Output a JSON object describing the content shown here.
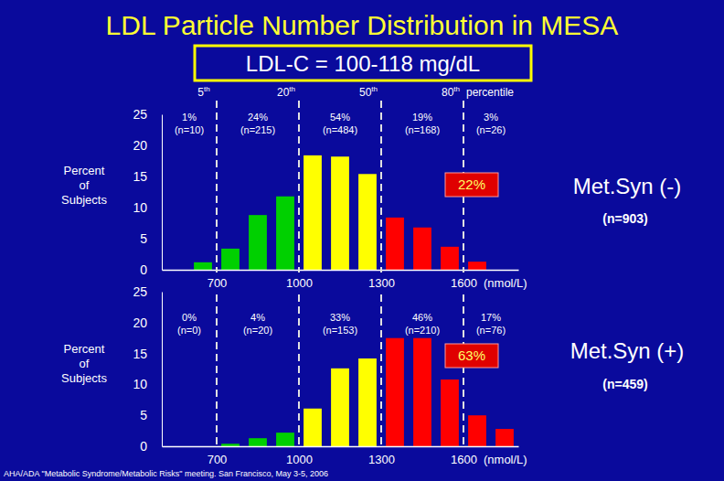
{
  "title": "LDL Particle Number Distribution in MESA",
  "subtitle": "LDL-C = 100-118 mg/dL",
  "source": "AHA/ADA \"Metabolic Syndrome/Metabolic Risks\" meeting. San Francisco, May 3-5, 2006",
  "chart_data": [
    {
      "type": "histogram",
      "title": "Met.Syn (-)",
      "subtitle": "(n=903)",
      "ylabel": "Percent of Subjects",
      "xlabel": "(nmol/L)",
      "bins": [
        600,
        700,
        800,
        900,
        1000,
        1100,
        1200,
        1300,
        1400,
        1500,
        1600,
        1700
      ],
      "values": [
        1.2,
        3.4,
        8.8,
        11.8,
        18.4,
        18.2,
        15.4,
        8.4,
        6.8,
        3.7,
        1.3
      ],
      "colors": [
        "#00d000",
        "#00d000",
        "#00d000",
        "#00d000",
        "#ffff00",
        "#ffff00",
        "#ffff00",
        "#ff0000",
        "#ff0000",
        "#ff0000",
        "#ff0000"
      ],
      "xlim": [
        500,
        1800
      ],
      "xticks": [
        700,
        1000,
        1300,
        1600
      ],
      "ylim": [
        0,
        25
      ],
      "yticks": [
        0,
        5,
        10,
        15,
        20,
        25
      ],
      "grid": false,
      "annotations": {
        "percentile_lines": [
          {
            "value": 700,
            "label": "5th"
          },
          {
            "value": 1000,
            "label": "20th"
          },
          {
            "value": 1300,
            "label": "50th"
          },
          {
            "value": 1600,
            "label": "80th"
          }
        ],
        "percentile_label": "percentile",
        "segments": [
          {
            "percent": "1%",
            "n": "(n=10)"
          },
          {
            "percent": "24%",
            "n": "(n=215)"
          },
          {
            "percent": "54%",
            "n": "(n=484)"
          },
          {
            "percent": "19%",
            "n": "(n=168)"
          },
          {
            "percent": "3%",
            "n": "(n=26)"
          }
        ],
        "highlight": "22%"
      }
    },
    {
      "type": "histogram",
      "title": "Met.Syn (+)",
      "subtitle": "(n=459)",
      "ylabel": "Percent of Subjects",
      "xlabel": "(nmol/L)",
      "bins": [
        700,
        800,
        900,
        1000,
        1100,
        1200,
        1300,
        1400,
        1500,
        1600,
        1700,
        1800
      ],
      "values": [
        0.4,
        1.3,
        2.2,
        6.1,
        12.6,
        14.2,
        17.5,
        17.5,
        10.8,
        5.0,
        2.8
      ],
      "colors": [
        "#00d000",
        "#00d000",
        "#00d000",
        "#ffff00",
        "#ffff00",
        "#ffff00",
        "#ff0000",
        "#ff0000",
        "#ff0000",
        "#ff0000",
        "#ff0000"
      ],
      "xlim": [
        500,
        1800
      ],
      "xticks": [
        700,
        1000,
        1300,
        1600
      ],
      "ylim": [
        0,
        25
      ],
      "yticks": [
        0,
        5,
        10,
        15,
        20,
        25
      ],
      "grid": false,
      "annotations": {
        "percentile_lines": [
          {
            "value": 700
          },
          {
            "value": 1000
          },
          {
            "value": 1300
          },
          {
            "value": 1600
          }
        ],
        "segments": [
          {
            "percent": "0%",
            "n": "(n=0)"
          },
          {
            "percent": "4%",
            "n": "(n=20)"
          },
          {
            "percent": "33%",
            "n": "(n=153)"
          },
          {
            "percent": "46%",
            "n": "(n=210)"
          },
          {
            "percent": "17%",
            "n": "(n=76)"
          }
        ],
        "highlight": "63%"
      }
    }
  ]
}
